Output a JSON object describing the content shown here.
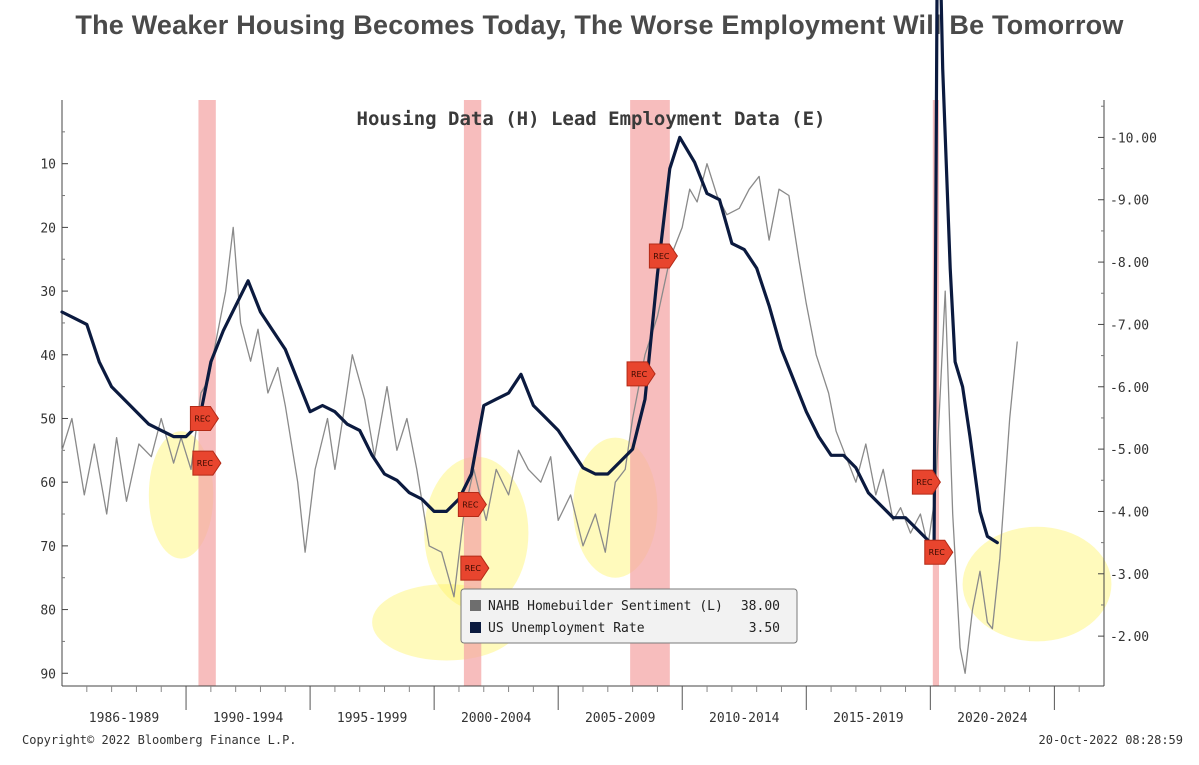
{
  "headline": "The Weaker Housing Becomes Today, The Worse Employment Will Be Tomorrow",
  "footer": {
    "copyright": "Copyright© 2022 Bloomberg Finance L.P.",
    "timestamp": "20-Oct-2022 08:28:59"
  },
  "colors": {
    "nahb": "#8a8a8a",
    "unemployment": "#0b1a3f",
    "recession": "#f4a7a7",
    "rec_marker": "#e8452e",
    "highlight": "#fff36a"
  },
  "chart_data": {
    "type": "line",
    "title": "Housing Data (H) Lead Employment Data (E)",
    "x_range": [
      1985.0,
      2027.0
    ],
    "x_tick_labels": [
      "1986-1989",
      "1990-1994",
      "1995-1999",
      "2000-2004",
      "2005-2009",
      "2010-2014",
      "2015-2019",
      "2020-2024"
    ],
    "left_axis": {
      "reversed": true,
      "range": [
        0,
        92
      ],
      "ticks": [
        10,
        20,
        30,
        40,
        50,
        60,
        70,
        80,
        90
      ]
    },
    "right_axis": {
      "range": [
        1.2,
        10.6
      ],
      "ticks": [
        "2.00",
        "3.00",
        "4.00",
        "5.00",
        "6.00",
        "7.00",
        "8.00",
        "9.00",
        "10.00"
      ]
    },
    "recession_bands": [
      [
        1990.5,
        1991.2
      ],
      [
        2001.2,
        2001.9
      ],
      [
        2007.9,
        2009.5
      ],
      [
        2020.1,
        2020.35
      ]
    ],
    "rec_label": "REC",
    "rec_markers": [
      {
        "axis": "left",
        "x": 1990.7,
        "y": 50
      },
      {
        "axis": "left",
        "x": 1990.8,
        "y": 57
      },
      {
        "axis": "left",
        "x": 2001.5,
        "y": 63.5
      },
      {
        "axis": "left",
        "x": 2001.6,
        "y": 73.5
      },
      {
        "axis": "left",
        "x": 2008.3,
        "y": 43
      },
      {
        "axis": "left",
        "x": 2009.2,
        "y": 24.5
      },
      {
        "axis": "left",
        "x": 2019.8,
        "y": 60
      },
      {
        "axis": "left",
        "x": 2020.3,
        "y": 71
      }
    ],
    "series": [
      {
        "name": "NAHB Homebuilder Sentiment (L)",
        "last_value": "38.00",
        "axis": "left",
        "points": [
          [
            1985.0,
            55
          ],
          [
            1985.4,
            50
          ],
          [
            1985.9,
            62
          ],
          [
            1986.3,
            54
          ],
          [
            1986.8,
            65
          ],
          [
            1987.2,
            53
          ],
          [
            1987.6,
            63
          ],
          [
            1988.1,
            54
          ],
          [
            1988.6,
            56
          ],
          [
            1989.0,
            50
          ],
          [
            1989.5,
            57
          ],
          [
            1989.8,
            53
          ],
          [
            1990.2,
            58
          ],
          [
            1990.6,
            46
          ],
          [
            1990.9,
            44
          ],
          [
            1991.2,
            38
          ],
          [
            1991.6,
            30
          ],
          [
            1991.9,
            20
          ],
          [
            1992.2,
            35
          ],
          [
            1992.6,
            41
          ],
          [
            1992.9,
            36
          ],
          [
            1993.3,
            46
          ],
          [
            1993.7,
            42
          ],
          [
            1994.0,
            48
          ],
          [
            1994.5,
            60
          ],
          [
            1994.8,
            71
          ],
          [
            1995.2,
            58
          ],
          [
            1995.7,
            50
          ],
          [
            1996.0,
            58
          ],
          [
            1996.4,
            48
          ],
          [
            1996.7,
            40
          ],
          [
            1997.2,
            47
          ],
          [
            1997.6,
            56
          ],
          [
            1998.1,
            45
          ],
          [
            1998.5,
            55
          ],
          [
            1998.9,
            50
          ],
          [
            1999.3,
            58
          ],
          [
            1999.8,
            70
          ],
          [
            2000.3,
            71
          ],
          [
            2000.8,
            78
          ],
          [
            2001.2,
            65
          ],
          [
            2001.6,
            58
          ],
          [
            2002.1,
            66
          ],
          [
            2002.5,
            58
          ],
          [
            2003.0,
            62
          ],
          [
            2003.4,
            55
          ],
          [
            2003.8,
            58
          ],
          [
            2004.3,
            60
          ],
          [
            2004.7,
            56
          ],
          [
            2005.0,
            66
          ],
          [
            2005.5,
            62
          ],
          [
            2006.0,
            70
          ],
          [
            2006.5,
            65
          ],
          [
            2006.9,
            71
          ],
          [
            2007.3,
            60
          ],
          [
            2007.7,
            58
          ],
          [
            2008.0,
            50
          ],
          [
            2008.5,
            40
          ],
          [
            2009.0,
            34
          ],
          [
            2009.5,
            25
          ],
          [
            2010.0,
            20
          ],
          [
            2010.3,
            14
          ],
          [
            2010.6,
            16
          ],
          [
            2011.0,
            10
          ],
          [
            2011.4,
            15
          ],
          [
            2011.8,
            18
          ],
          [
            2012.3,
            17
          ],
          [
            2012.7,
            14
          ],
          [
            2013.1,
            12
          ],
          [
            2013.5,
            22
          ],
          [
            2013.9,
            14
          ],
          [
            2014.3,
            15
          ],
          [
            2014.7,
            25
          ],
          [
            2015.0,
            32
          ],
          [
            2015.4,
            40
          ],
          [
            2015.9,
            46
          ],
          [
            2016.2,
            52
          ],
          [
            2016.6,
            56
          ],
          [
            2017.0,
            60
          ],
          [
            2017.4,
            54
          ],
          [
            2017.8,
            62
          ],
          [
            2018.1,
            58
          ],
          [
            2018.5,
            66
          ],
          [
            2018.8,
            64
          ],
          [
            2019.2,
            68
          ],
          [
            2019.6,
            65
          ],
          [
            2019.9,
            70
          ],
          [
            2020.2,
            62
          ],
          [
            2020.6,
            30
          ],
          [
            2020.9,
            65
          ],
          [
            2021.2,
            86
          ],
          [
            2021.4,
            90
          ],
          [
            2021.7,
            80
          ],
          [
            2022.0,
            74
          ],
          [
            2022.3,
            82
          ],
          [
            2022.5,
            83
          ],
          [
            2022.8,
            72
          ],
          [
            2023.2,
            50
          ],
          [
            2023.5,
            38
          ]
        ]
      },
      {
        "name": "US Unemployment Rate",
        "last_value": "3.50",
        "axis": "right",
        "points": [
          [
            1985.0,
            7.2
          ],
          [
            1985.5,
            7.1
          ],
          [
            1986.0,
            7.0
          ],
          [
            1986.5,
            6.4
          ],
          [
            1987.0,
            6.0
          ],
          [
            1987.5,
            5.8
          ],
          [
            1988.0,
            5.6
          ],
          [
            1988.5,
            5.4
          ],
          [
            1989.0,
            5.3
          ],
          [
            1989.5,
            5.2
          ],
          [
            1990.0,
            5.2
          ],
          [
            1990.5,
            5.4
          ],
          [
            1991.0,
            6.4
          ],
          [
            1991.5,
            6.9
          ],
          [
            1992.0,
            7.3
          ],
          [
            1992.5,
            7.7
          ],
          [
            1993.0,
            7.2
          ],
          [
            1993.5,
            6.9
          ],
          [
            1994.0,
            6.6
          ],
          [
            1994.5,
            6.1
          ],
          [
            1995.0,
            5.6
          ],
          [
            1995.5,
            5.7
          ],
          [
            1996.0,
            5.6
          ],
          [
            1996.5,
            5.4
          ],
          [
            1997.0,
            5.3
          ],
          [
            1997.5,
            4.9
          ],
          [
            1998.0,
            4.6
          ],
          [
            1998.5,
            4.5
          ],
          [
            1999.0,
            4.3
          ],
          [
            1999.5,
            4.2
          ],
          [
            2000.0,
            4.0
          ],
          [
            2000.5,
            4.0
          ],
          [
            2001.0,
            4.2
          ],
          [
            2001.5,
            4.6
          ],
          [
            2002.0,
            5.7
          ],
          [
            2002.5,
            5.8
          ],
          [
            2003.0,
            5.9
          ],
          [
            2003.5,
            6.2
          ],
          [
            2004.0,
            5.7
          ],
          [
            2004.5,
            5.5
          ],
          [
            2005.0,
            5.3
          ],
          [
            2005.5,
            5.0
          ],
          [
            2006.0,
            4.7
          ],
          [
            2006.5,
            4.6
          ],
          [
            2007.0,
            4.6
          ],
          [
            2007.5,
            4.8
          ],
          [
            2008.0,
            5.0
          ],
          [
            2008.5,
            5.8
          ],
          [
            2009.0,
            7.8
          ],
          [
            2009.5,
            9.5
          ],
          [
            2009.9,
            10.0
          ],
          [
            2010.5,
            9.6
          ],
          [
            2011.0,
            9.1
          ],
          [
            2011.5,
            9.0
          ],
          [
            2012.0,
            8.3
          ],
          [
            2012.5,
            8.2
          ],
          [
            2013.0,
            7.9
          ],
          [
            2013.5,
            7.3
          ],
          [
            2014.0,
            6.6
          ],
          [
            2014.5,
            6.1
          ],
          [
            2015.0,
            5.6
          ],
          [
            2015.5,
            5.2
          ],
          [
            2016.0,
            4.9
          ],
          [
            2016.5,
            4.9
          ],
          [
            2017.0,
            4.7
          ],
          [
            2017.5,
            4.3
          ],
          [
            2018.0,
            4.1
          ],
          [
            2018.5,
            3.9
          ],
          [
            2019.0,
            3.9
          ],
          [
            2019.5,
            3.7
          ],
          [
            2020.0,
            3.5
          ],
          [
            2020.15,
            3.5
          ],
          [
            2020.3,
            14.7
          ],
          [
            2020.5,
            11.1
          ],
          [
            2020.8,
            7.9
          ],
          [
            2021.0,
            6.4
          ],
          [
            2021.3,
            6.0
          ],
          [
            2021.6,
            5.2
          ],
          [
            2022.0,
            4.0
          ],
          [
            2022.3,
            3.6
          ],
          [
            2022.7,
            3.5
          ]
        ]
      }
    ],
    "highlights": [
      {
        "x": 1989.8,
        "y": 62,
        "rx": 1.3,
        "ry": 10
      },
      {
        "x": 2001.7,
        "y": 68,
        "rx": 2.1,
        "ry": 12
      },
      {
        "x": 2000.5,
        "y": 82,
        "rx": 3.0,
        "ry": 6
      },
      {
        "x": 2007.3,
        "y": 64,
        "rx": 1.7,
        "ry": 11
      },
      {
        "x": 2024.3,
        "y": 76,
        "rx": 3.0,
        "ry": 9
      }
    ]
  }
}
